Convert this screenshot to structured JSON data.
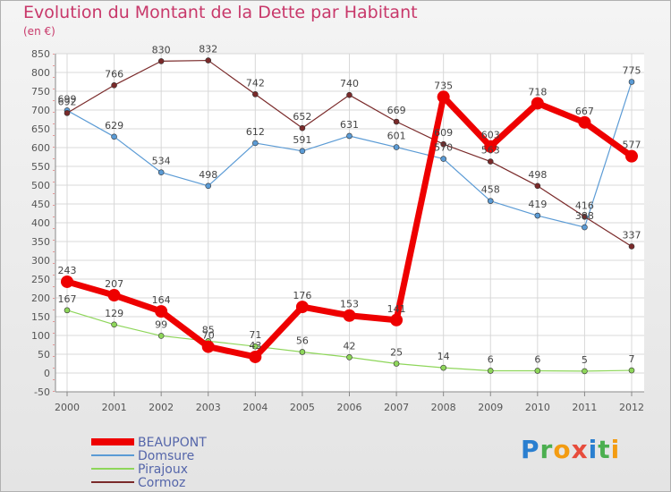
{
  "chart_data": {
    "type": "line",
    "title": "Evolution du Montant de la Dette par Habitant",
    "subtitle": "(en €)",
    "x": [
      "2000",
      "2001",
      "2002",
      "2003",
      "2004",
      "2005",
      "2006",
      "2007",
      "2008",
      "2009",
      "2010",
      "2011",
      "2012"
    ],
    "ylim": [
      -50,
      850
    ],
    "yticks": [
      -50,
      0,
      50,
      100,
      150,
      200,
      250,
      300,
      350,
      400,
      450,
      500,
      550,
      600,
      650,
      700,
      750,
      800,
      850
    ],
    "grid": true,
    "legend_position": "bottom-left",
    "series": [
      {
        "name": "BEAUPONT",
        "color": "#ee0000",
        "values": [
          243,
          207,
          164,
          70,
          43,
          176,
          153,
          141,
          735,
          603,
          718,
          667,
          577
        ]
      },
      {
        "name": "Domsure",
        "color": "#5b9bd5",
        "values": [
          699,
          629,
          534,
          498,
          612,
          591,
          631,
          601,
          570,
          458,
          419,
          388,
          775
        ]
      },
      {
        "name": "Pirajoux",
        "color": "#8ed65a",
        "values": [
          167,
          129,
          99,
          85,
          71,
          56,
          42,
          25,
          14,
          6,
          6,
          5,
          7
        ]
      },
      {
        "name": "Cormoz",
        "color": "#7a2a2a",
        "values": [
          692,
          766,
          830,
          832,
          742,
          652,
          740,
          669,
          609,
          563,
          498,
          416,
          337
        ]
      }
    ]
  },
  "logo": {
    "letters": [
      "P",
      "r",
      "o",
      "x",
      "i",
      "t",
      "i"
    ],
    "colors": [
      "#2a7fd0",
      "#4caf50",
      "#f39c12",
      "#e74c3c",
      "#2a7fd0",
      "#4caf50",
      "#f39c12"
    ]
  }
}
